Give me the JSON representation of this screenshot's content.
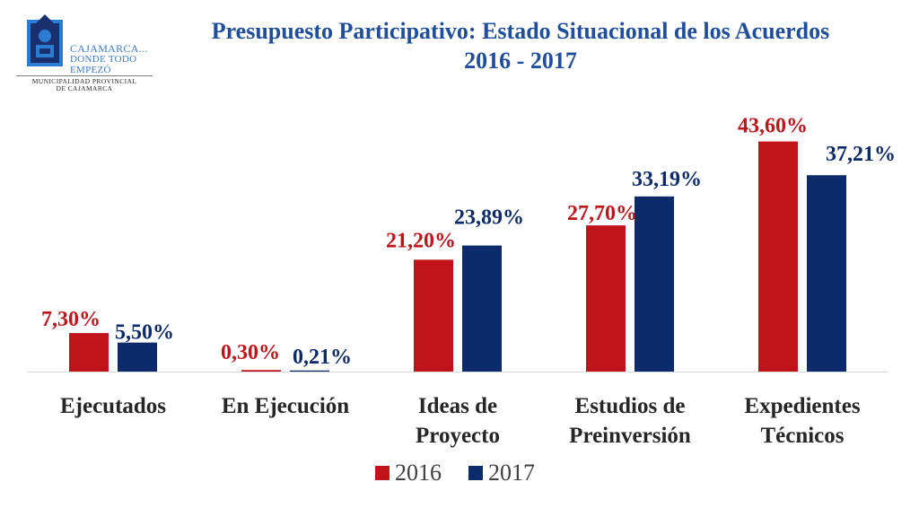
{
  "logo": {
    "line1": "CAJAMARCA...",
    "line2": "DONDE TODO",
    "line3": "EMPEZÓ",
    "sub1": "MUNICIPALIDAD PROVINCIAL",
    "sub2": "DE CAJAMARCA",
    "icon": "cajamarca-coat-of-arms-icon"
  },
  "chart_data": {
    "type": "bar",
    "title": "Presupuesto Participativo: Estado Situacional de los Acuerdos",
    "subtitle": "2016 - 2017",
    "categories": [
      "Ejecutados",
      "En Ejecución",
      "Ideas de Proyecto",
      "Estudios de Preinversión",
      "Expedientes Técnicos"
    ],
    "category_lines": [
      [
        "Ejecutados"
      ],
      [
        "En Ejecución"
      ],
      [
        "Ideas de",
        "Proyecto"
      ],
      [
        "Estudios de",
        "Preinversión"
      ],
      [
        "Expedientes",
        "Técnicos"
      ]
    ],
    "series": [
      {
        "name": "2016",
        "color": "#c0141a",
        "values": [
          7.3,
          0.3,
          21.2,
          27.7,
          43.6
        ],
        "labels": [
          "7,30%",
          "0,30%",
          "21,20%",
          "27,70%",
          "43,60%"
        ]
      },
      {
        "name": "2017",
        "color": "#0d2a6b",
        "values": [
          5.5,
          0.21,
          23.89,
          33.19,
          37.21
        ],
        "labels": [
          "5,50%",
          "0,21%",
          "23,89%",
          "33,19%",
          "37,21%"
        ]
      }
    ],
    "ylim": [
      0,
      50
    ],
    "grid": false,
    "legend": "bottom"
  }
}
